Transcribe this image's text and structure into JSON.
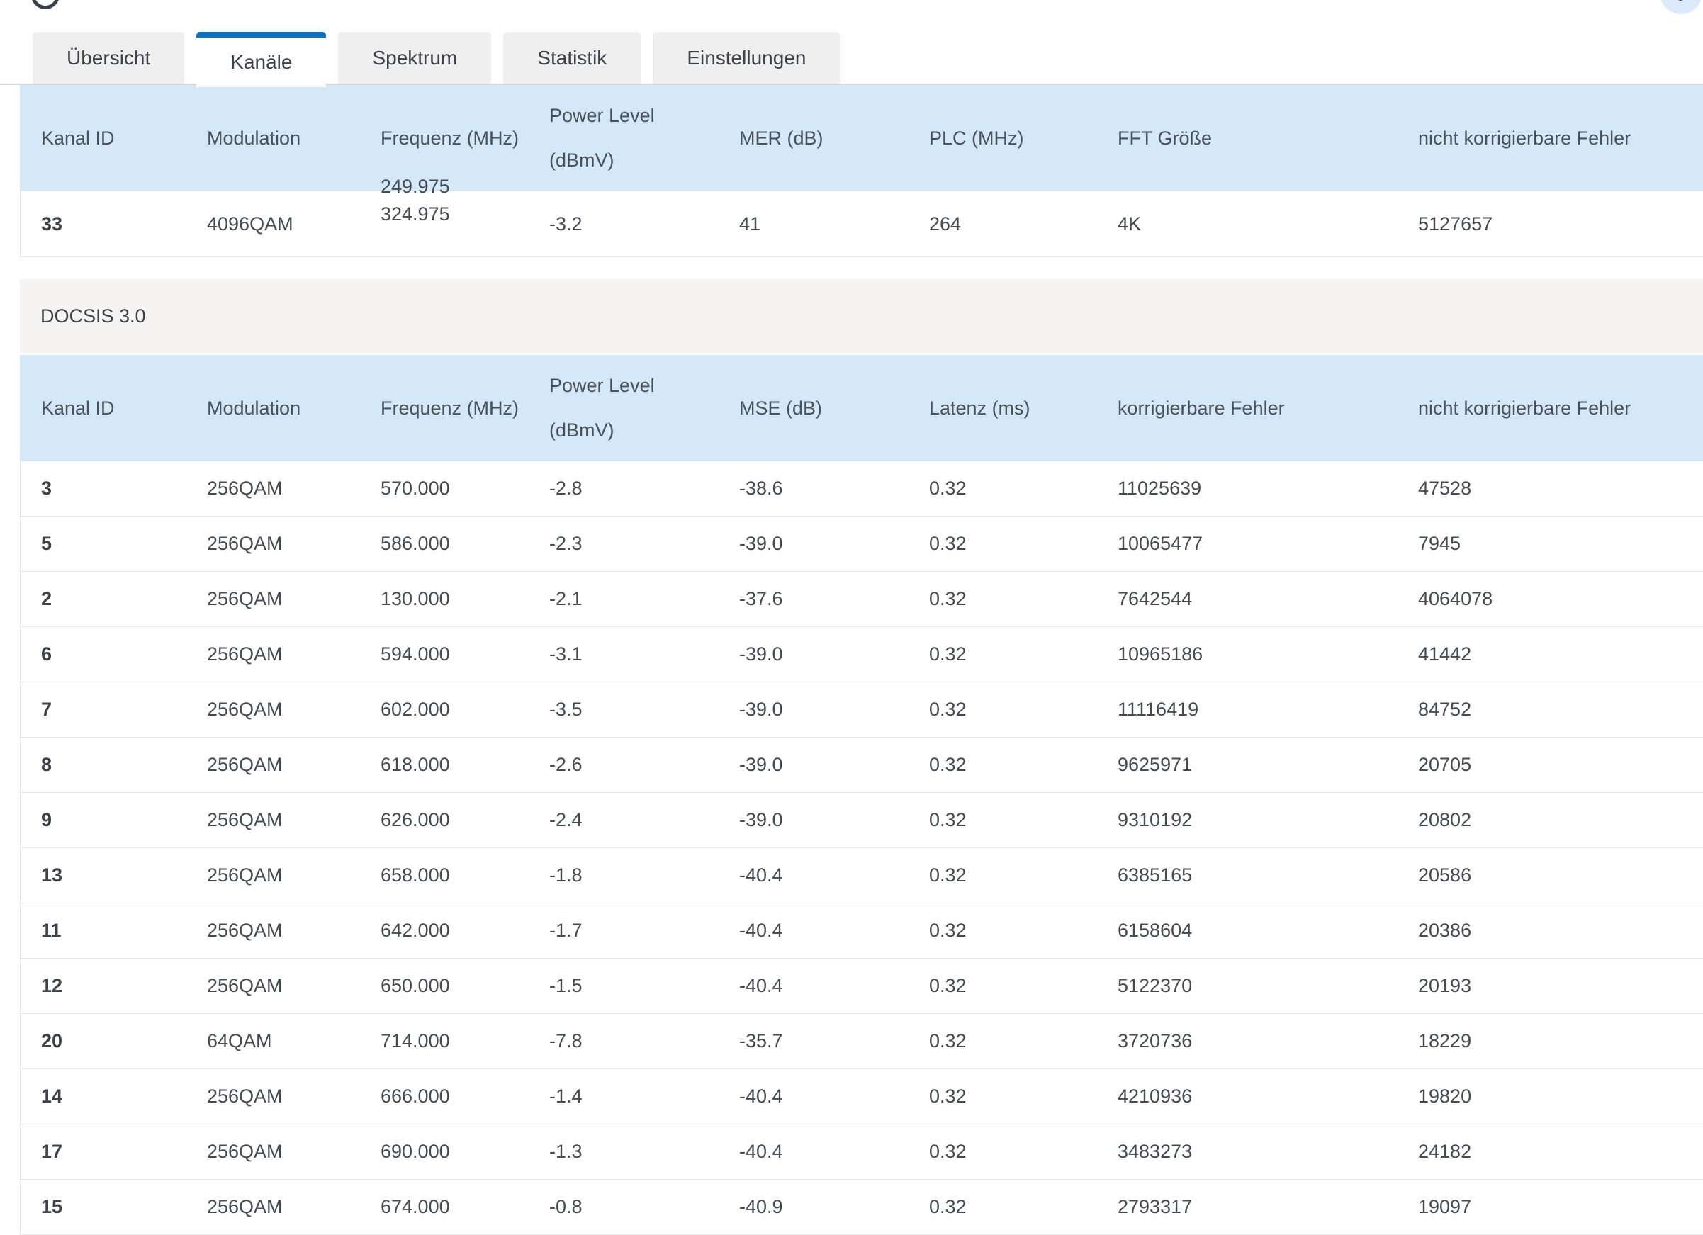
{
  "header": {
    "help_label": "?"
  },
  "tabs": [
    {
      "label": "Übersicht",
      "active": false
    },
    {
      "label": "Kanäle",
      "active": true
    },
    {
      "label": "Spektrum",
      "active": false
    },
    {
      "label": "Statistik",
      "active": false
    },
    {
      "label": "Einstellungen",
      "active": false
    }
  ],
  "section_title": "DOCSIS 3.0",
  "table1": {
    "columns": [
      {
        "key": "id",
        "label": "Kanal ID"
      },
      {
        "key": "modulation",
        "label": "Modulation"
      },
      {
        "key": "frequency",
        "label": "Frequenz (MHz)"
      },
      {
        "key": "power",
        "label": "Power Level",
        "label2": "(dBmV)"
      },
      {
        "key": "mer",
        "label": "MER (dB)"
      },
      {
        "key": "plc",
        "label": "PLC (MHz)"
      },
      {
        "key": "fft",
        "label": "FFT Größe"
      },
      {
        "key": "uncorrectable",
        "label": "nicht korrigierbare Fehler"
      }
    ],
    "row": {
      "id": "33",
      "modulation": "4096QAM",
      "frequency_clipped": "249.975",
      "frequency": "324.975",
      "power": "-3.2",
      "mer": "41",
      "plc": "264",
      "fft": "4K",
      "uncorrectable": "5127657"
    }
  },
  "table2": {
    "columns": [
      {
        "key": "id",
        "label": "Kanal ID"
      },
      {
        "key": "modulation",
        "label": "Modulation"
      },
      {
        "key": "frequency",
        "label": "Frequenz (MHz)"
      },
      {
        "key": "power",
        "label": "Power Level",
        "label2": "(dBmV)"
      },
      {
        "key": "mse",
        "label": "MSE (dB)"
      },
      {
        "key": "latency",
        "label": "Latenz (ms)"
      },
      {
        "key": "correctable",
        "label": "korrigierbare Fehler"
      },
      {
        "key": "uncorrectable",
        "label": "nicht korrigierbare Fehler"
      }
    ],
    "rows": [
      {
        "id": "3",
        "modulation": "256QAM",
        "frequency": "570.000",
        "power": "-2.8",
        "mse": "-38.6",
        "latency": "0.32",
        "correctable": "11025639",
        "uncorrectable": "47528"
      },
      {
        "id": "5",
        "modulation": "256QAM",
        "frequency": "586.000",
        "power": "-2.3",
        "mse": "-39.0",
        "latency": "0.32",
        "correctable": "10065477",
        "uncorrectable": "7945"
      },
      {
        "id": "2",
        "modulation": "256QAM",
        "frequency": "130.000",
        "power": "-2.1",
        "mse": "-37.6",
        "latency": "0.32",
        "correctable": "7642544",
        "uncorrectable": "4064078"
      },
      {
        "id": "6",
        "modulation": "256QAM",
        "frequency": "594.000",
        "power": "-3.1",
        "mse": "-39.0",
        "latency": "0.32",
        "correctable": "10965186",
        "uncorrectable": "41442"
      },
      {
        "id": "7",
        "modulation": "256QAM",
        "frequency": "602.000",
        "power": "-3.5",
        "mse": "-39.0",
        "latency": "0.32",
        "correctable": "11116419",
        "uncorrectable": "84752"
      },
      {
        "id": "8",
        "modulation": "256QAM",
        "frequency": "618.000",
        "power": "-2.6",
        "mse": "-39.0",
        "latency": "0.32",
        "correctable": "9625971",
        "uncorrectable": "20705"
      },
      {
        "id": "9",
        "modulation": "256QAM",
        "frequency": "626.000",
        "power": "-2.4",
        "mse": "-39.0",
        "latency": "0.32",
        "correctable": "9310192",
        "uncorrectable": "20802"
      },
      {
        "id": "13",
        "modulation": "256QAM",
        "frequency": "658.000",
        "power": "-1.8",
        "mse": "-40.4",
        "latency": "0.32",
        "correctable": "6385165",
        "uncorrectable": "20586"
      },
      {
        "id": "11",
        "modulation": "256QAM",
        "frequency": "642.000",
        "power": "-1.7",
        "mse": "-40.4",
        "latency": "0.32",
        "correctable": "6158604",
        "uncorrectable": "20386"
      },
      {
        "id": "12",
        "modulation": "256QAM",
        "frequency": "650.000",
        "power": "-1.5",
        "mse": "-40.4",
        "latency": "0.32",
        "correctable": "5122370",
        "uncorrectable": "20193"
      },
      {
        "id": "20",
        "modulation": "64QAM",
        "frequency": "714.000",
        "power": "-7.8",
        "mse": "-35.7",
        "latency": "0.32",
        "correctable": "3720736",
        "uncorrectable": "18229"
      },
      {
        "id": "14",
        "modulation": "256QAM",
        "frequency": "666.000",
        "power": "-1.4",
        "mse": "-40.4",
        "latency": "0.32",
        "correctable": "4210936",
        "uncorrectable": "19820"
      },
      {
        "id": "17",
        "modulation": "256QAM",
        "frequency": "690.000",
        "power": "-1.3",
        "mse": "-40.4",
        "latency": "0.32",
        "correctable": "3483273",
        "uncorrectable": "24182"
      },
      {
        "id": "15",
        "modulation": "256QAM",
        "frequency": "674.000",
        "power": "-0.8",
        "mse": "-40.9",
        "latency": "0.32",
        "correctable": "2793317",
        "uncorrectable": "19097"
      }
    ]
  },
  "colors": {
    "accent_blue": "#0c72c6",
    "header_blue": "#d5e8f7",
    "tab_gray": "#f0efef",
    "section_gray": "#f5f4f2"
  }
}
